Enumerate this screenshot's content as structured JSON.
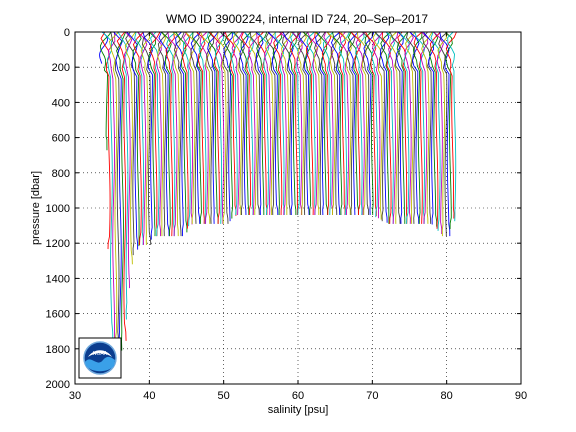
{
  "chart_data": {
    "type": "line",
    "title": "WMO ID 3900224, internal ID 724, 20–Sep–2017",
    "xlabel": "salinity [psu]",
    "ylabel": "pressure [dbar]",
    "xlim": [
      30,
      90
    ],
    "ylim": [
      0,
      2000
    ],
    "y_reversed": true,
    "grid": true,
    "xticks": [
      "30",
      "40",
      "50",
      "60",
      "70",
      "80",
      "90"
    ],
    "yticks": [
      "0",
      "200",
      "400",
      "600",
      "800",
      "1000",
      "1200",
      "1400",
      "1600",
      "1800",
      "2000"
    ],
    "series_colors": [
      "#0000ff",
      "#008000",
      "#ff0000",
      "#00bfbf",
      "#bf00bf",
      "#bfbf00",
      "#404040"
    ],
    "profile_spacing_psu": 0.3,
    "profile_range": [
      34.0,
      81.2
    ],
    "max_pressure_by_salinity": [
      [
        34.0,
        180
      ],
      [
        34.5,
        1000
      ],
      [
        34.8,
        1700
      ],
      [
        35.0,
        1810
      ],
      [
        36.5,
        1810
      ],
      [
        36.9,
        1700
      ],
      [
        37.2,
        1500
      ],
      [
        37.6,
        1320
      ],
      [
        38.0,
        1250
      ],
      [
        38.6,
        1210
      ],
      [
        40.0,
        1210
      ],
      [
        40.5,
        1160
      ],
      [
        44.5,
        1160
      ],
      [
        45.2,
        1110
      ],
      [
        45.8,
        1090
      ],
      [
        50.5,
        1090
      ],
      [
        51.5,
        1040
      ],
      [
        70.0,
        1040
      ],
      [
        71.0,
        1060
      ],
      [
        72.0,
        1090
      ],
      [
        78.0,
        1090
      ],
      [
        79.0,
        1130
      ],
      [
        79.5,
        1160
      ],
      [
        80.3,
        1160
      ],
      [
        80.8,
        1060
      ],
      [
        81.2,
        1080
      ]
    ]
  },
  "logo": {
    "text": "NOAA"
  }
}
